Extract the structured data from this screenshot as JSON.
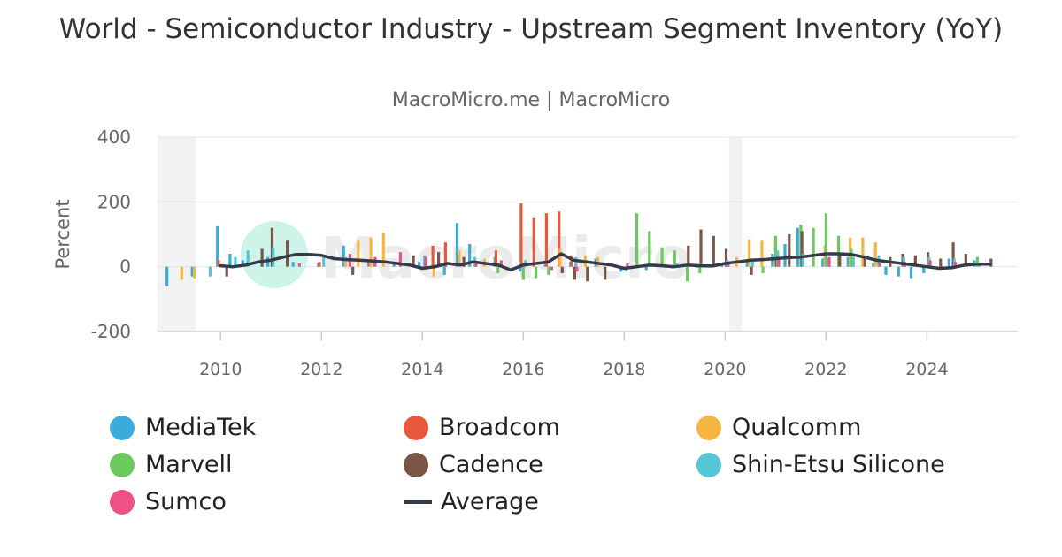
{
  "chart_data": {
    "type": "bar",
    "title": "World - Semiconductor Industry - Upstream Segment Inventory (YoY)",
    "subtitle": "MacroMicro.me | MacroMicro",
    "ylabel": "Percent",
    "ylim": [
      -200,
      400
    ],
    "yticks": [
      "400",
      "200",
      "0",
      "-200"
    ],
    "xlim": [
      2008.75,
      2025.8
    ],
    "xticks": [
      "2010",
      "2012",
      "2014",
      "2016",
      "2018",
      "2020",
      "2022",
      "2024"
    ],
    "xtick_values": [
      2010,
      2012,
      2014,
      2016,
      2018,
      2020,
      2022,
      2024
    ],
    "grid": true,
    "watermark": "MacroMicro",
    "shaded_ranges": [
      [
        2008.75,
        2009.5
      ],
      [
        2020.08,
        2020.33
      ]
    ],
    "legend_position": "bottom",
    "series": [
      {
        "name": "MediaTek",
        "color": "#3aacdc",
        "x": [
          2009.0,
          2009.5,
          2010.0,
          2010.25,
          2010.5,
          2011.0,
          2011.5,
          2012.0,
          2012.5,
          2013.0,
          2013.5,
          2014.0,
          2014.5,
          2014.75,
          2015.0,
          2015.5,
          2016.0,
          2016.5,
          2017.0,
          2017.5,
          2018.0,
          2018.5,
          2019.0,
          2019.5,
          2020.0,
          2020.5,
          2021.0,
          2021.25,
          2021.5,
          2022.0,
          2022.5,
          2023.0,
          2023.25,
          2023.5,
          2023.75,
          2024.0,
          2024.5,
          2025.0
        ],
        "values": [
          -60,
          -30,
          125,
          40,
          20,
          30,
          15,
          10,
          65,
          20,
          15,
          15,
          -25,
          135,
          70,
          30,
          -15,
          10,
          15,
          25,
          -15,
          -10,
          -5,
          0,
          10,
          20,
          40,
          70,
          120,
          25,
          30,
          10,
          -25,
          -30,
          -35,
          -20,
          25,
          20
        ]
      },
      {
        "name": "Broadcom",
        "color": "#e8583d",
        "x": [
          2010.0,
          2012.0,
          2013.0,
          2014.25,
          2014.5,
          2015.5,
          2016.0,
          2016.25,
          2016.5,
          2016.75,
          2017.0
        ],
        "values": [
          20,
          15,
          20,
          65,
          75,
          50,
          195,
          150,
          165,
          170,
          35
        ]
      },
      {
        "name": "Qualcomm",
        "color": "#f4b63f",
        "x": [
          2009.25,
          2009.5,
          2012.5,
          2012.75,
          2013.0,
          2013.25,
          2014.25,
          2014.75,
          2015.25,
          2016.75,
          2017.25,
          2017.5,
          2020.25,
          2020.5,
          2020.75,
          2021.0,
          2022.0,
          2022.5,
          2022.75,
          2023.0
        ],
        "values": [
          -40,
          -35,
          30,
          80,
          90,
          105,
          -30,
          50,
          25,
          55,
          35,
          30,
          30,
          85,
          80,
          30,
          65,
          90,
          90,
          75
        ]
      },
      {
        "name": "Marvell",
        "color": "#6cc95e",
        "x": [
          2015.5,
          2016.0,
          2016.25,
          2016.5,
          2018.25,
          2018.5,
          2018.75,
          2019.0,
          2019.25,
          2019.5,
          2020.75,
          2021.0,
          2021.5,
          2021.75,
          2022.0,
          2022.25,
          2022.5,
          2025.0
        ],
        "values": [
          -20,
          -40,
          -35,
          -25,
          165,
          110,
          60,
          50,
          -45,
          -20,
          -20,
          95,
          130,
          120,
          165,
          95,
          55,
          30
        ]
      },
      {
        "name": "Cadence",
        "color": "#7a5548",
        "x": [
          2010.1,
          2010.8,
          2011.0,
          2011.3,
          2012.6,
          2013.8,
          2014.3,
          2014.8,
          2016.75,
          2017.0,
          2017.25,
          2017.6,
          2019.25,
          2019.5,
          2019.75,
          2020.0,
          2020.5,
          2021.0,
          2021.25,
          2021.5,
          2022.25,
          2022.75,
          2023.25,
          2023.5,
          2023.75,
          2024.0,
          2024.25,
          2024.5,
          2024.75,
          2025.25
        ],
        "values": [
          -30,
          55,
          120,
          80,
          -25,
          35,
          45,
          30,
          -20,
          -40,
          -45,
          -40,
          65,
          115,
          95,
          55,
          -25,
          25,
          100,
          110,
          40,
          35,
          30,
          40,
          35,
          45,
          25,
          75,
          40,
          25
        ]
      },
      {
        "name": "Shin-Etsu Silicone",
        "color": "#55c6d6",
        "x": [
          2009.75,
          2010.25,
          2010.5,
          2011.0,
          2012.0,
          2013.0,
          2014.0,
          2015.0,
          2016.0,
          2017.0,
          2018.0,
          2019.0,
          2020.0,
          2020.5,
          2021.0,
          2021.5,
          2022.0,
          2022.5,
          2023.0,
          2023.5,
          2024.0,
          2024.5,
          2025.0
        ],
        "values": [
          -30,
          30,
          50,
          60,
          30,
          20,
          35,
          30,
          20,
          30,
          -15,
          10,
          20,
          25,
          50,
          40,
          25,
          30,
          35,
          30,
          30,
          25,
          10
        ]
      },
      {
        "name": "Sumco",
        "color": "#ee5186",
        "x": [
          2011.5,
          2012.5,
          2013.0,
          2013.5,
          2014.0,
          2015.0,
          2015.5,
          2016.5,
          2017.0,
          2018.0,
          2019.0,
          2020.0,
          2021.0,
          2022.0,
          2023.0,
          2023.5,
          2024.0,
          2024.5
        ],
        "values": [
          10,
          40,
          30,
          45,
          30,
          10,
          20,
          -10,
          -15,
          10,
          0,
          10,
          25,
          30,
          10,
          15,
          20,
          15
        ]
      },
      {
        "name": "Average",
        "color": "#343a4a",
        "type": "line",
        "x": [
          2010.0,
          2010.25,
          2010.5,
          2010.75,
          2011.0,
          2011.25,
          2011.5,
          2011.75,
          2012.0,
          2012.25,
          2012.5,
          2012.75,
          2013.0,
          2013.25,
          2013.5,
          2013.75,
          2014.0,
          2014.25,
          2014.5,
          2014.75,
          2015.0,
          2015.25,
          2015.5,
          2015.75,
          2016.0,
          2016.25,
          2016.5,
          2016.75,
          2017.0,
          2017.25,
          2017.5,
          2017.75,
          2018.0,
          2018.25,
          2018.5,
          2018.75,
          2019.0,
          2019.25,
          2019.5,
          2019.75,
          2020.0,
          2020.25,
          2020.5,
          2020.75,
          2021.0,
          2021.25,
          2021.5,
          2021.75,
          2022.0,
          2022.25,
          2022.5,
          2022.75,
          2023.0,
          2023.25,
          2023.5,
          2023.75,
          2024.0,
          2024.25,
          2024.5,
          2024.75,
          2025.0,
          2025.25
        ],
        "values": [
          3,
          0,
          5,
          15,
          20,
          30,
          38,
          38,
          35,
          25,
          22,
          20,
          18,
          15,
          10,
          5,
          -5,
          0,
          10,
          5,
          15,
          10,
          5,
          -10,
          5,
          10,
          15,
          40,
          20,
          15,
          10,
          5,
          -5,
          0,
          5,
          3,
          0,
          5,
          3,
          2,
          10,
          15,
          20,
          22,
          25,
          28,
          30,
          35,
          40,
          40,
          38,
          30,
          20,
          15,
          10,
          5,
          0,
          -5,
          -3,
          5,
          8,
          8
        ]
      }
    ]
  }
}
